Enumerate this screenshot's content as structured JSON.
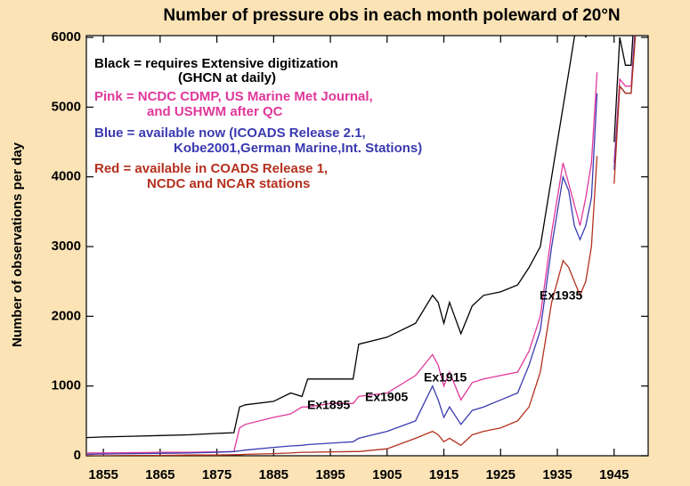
{
  "chart_data": {
    "type": "line",
    "title": "Number of pressure obs in each month poleward of 20°N",
    "ylabel": "Number of observations per day",
    "x": [
      1852,
      1855,
      1860,
      1865,
      1870,
      1875,
      1878,
      1879,
      1880,
      1885,
      1888,
      1890,
      1891,
      1895,
      1899,
      1900,
      1905,
      1910,
      1913,
      1914,
      1915,
      1916,
      1918,
      1920,
      1922,
      1925,
      1928,
      1930,
      1932,
      1934,
      1936,
      1937,
      1938,
      1939,
      1940,
      1941,
      1942,
      1943,
      1945,
      1946,
      1947,
      1948,
      1949
    ],
    "series": [
      {
        "name": "Black",
        "color": "#000000",
        "values": [
          260,
          270,
          280,
          290,
          300,
          320,
          330,
          700,
          730,
          780,
          900,
          850,
          1100,
          1100,
          1100,
          1600,
          1700,
          1900,
          2300,
          2200,
          1900,
          2200,
          1750,
          2150,
          2300,
          2350,
          2450,
          2700,
          3000,
          4000,
          5000,
          5500,
          6000,
          6500,
          6000,
          6500,
          7000,
          null,
          4500,
          6000,
          5600,
          5600,
          7000
        ]
      },
      {
        "name": "Pink",
        "color": "#e0389a",
        "values": [
          40,
          40,
          45,
          50,
          50,
          55,
          60,
          400,
          450,
          550,
          600,
          700,
          700,
          750,
          750,
          850,
          900,
          1150,
          1450,
          1300,
          1000,
          1200,
          800,
          1050,
          1100,
          1150,
          1200,
          1500,
          2000,
          3200,
          4200,
          3900,
          3600,
          3300,
          3700,
          4200,
          5500,
          null,
          4200,
          5400,
          5300,
          5300,
          6500
        ]
      },
      {
        "name": "Blue",
        "color": "#3a3ab0",
        "values": [
          20,
          25,
          30,
          35,
          40,
          50,
          60,
          70,
          80,
          120,
          140,
          150,
          160,
          180,
          200,
          250,
          350,
          500,
          1000,
          800,
          550,
          700,
          450,
          650,
          700,
          800,
          900,
          1300,
          1800,
          3000,
          4000,
          3800,
          3300,
          3100,
          3300,
          3700,
          5200,
          null,
          4100,
          5300,
          5200,
          5200,
          6500
        ]
      },
      {
        "name": "Red",
        "color": "#b5301e",
        "values": [
          0,
          0,
          5,
          5,
          10,
          10,
          15,
          15,
          20,
          30,
          40,
          50,
          50,
          55,
          60,
          60,
          100,
          250,
          350,
          300,
          200,
          250,
          150,
          300,
          350,
          400,
          500,
          700,
          1200,
          2200,
          2800,
          2700,
          2500,
          2300,
          2500,
          3000,
          4300,
          null,
          3900,
          5300,
          5200,
          5200,
          6300
        ]
      }
    ],
    "legend_text": [
      {
        "color": "#000000",
        "lines": [
          "Black = requires Extensive digitization",
          "(GHCN at daily)"
        ]
      },
      {
        "color": "#e0389a",
        "lines": [
          "Pink = NCDC CDMP, US Marine Met Journal,",
          "and USHWM after QC"
        ]
      },
      {
        "color": "#3a3ab0",
        "lines": [
          "Blue  = available now (ICOADS Release 2.1,",
          "Kobe2001,German Marine,Int. Stations)"
        ]
      },
      {
        "color": "#b5301e",
        "lines": [
          "Red  = available in COADS Release 1,",
          "NCDC and NCAR stations"
        ]
      }
    ],
    "annotations": [
      "Ex1895",
      "Ex1905",
      "Ex1915",
      "Ex1935"
    ],
    "xlim": [
      1852,
      1951
    ],
    "xticks": [
      1855,
      1865,
      1875,
      1885,
      1895,
      1905,
      1915,
      1925,
      1935,
      1945
    ],
    "ylim": [
      0,
      6000
    ],
    "yticks": [
      0,
      1000,
      2000,
      3000,
      4000,
      5000,
      6000
    ]
  }
}
